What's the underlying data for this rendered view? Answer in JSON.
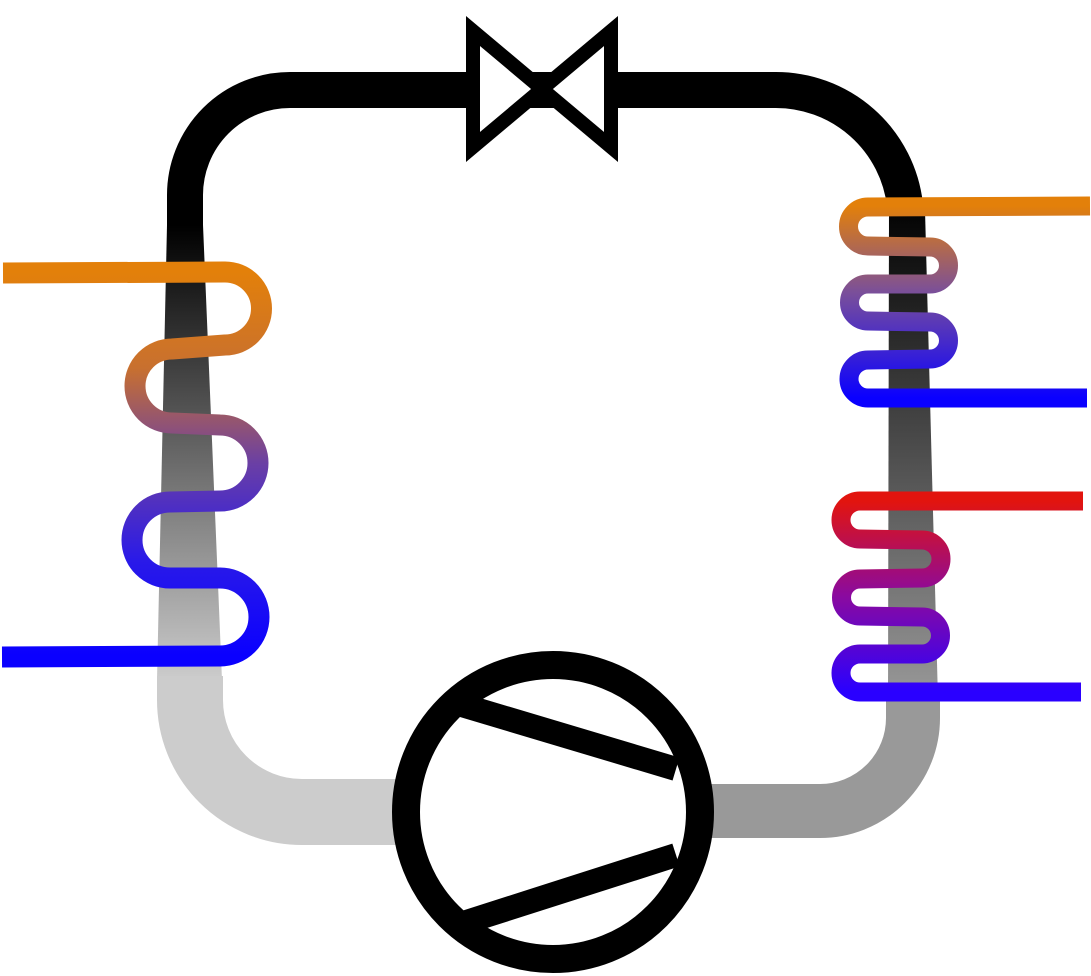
{
  "diagram": {
    "type": "refrigeration-cycle",
    "labels": [],
    "components": {
      "expansion_valve": {
        "icon": "expansion-valve-icon"
      },
      "compressor": {
        "icon": "compressor-icon"
      },
      "evaporator": {
        "icon": "evaporator-coil-icon"
      },
      "condenser_upper": {
        "icon": "condenser-coil-icon"
      },
      "condenser_lower": {
        "icon": "condenser-coil-icon"
      }
    },
    "colors": {
      "pipe_dark": "#000000",
      "pipe_mid": "#999999",
      "pipe_light": "#cccccc",
      "fluid_hot_orange": "#e3800a",
      "fluid_hot_red": "#e2140e",
      "fluid_cold_blue": "#0a00ff",
      "fluid_mid_purple": "#6a3fa5",
      "outline": "#000000",
      "background": "#ffffff"
    }
  }
}
